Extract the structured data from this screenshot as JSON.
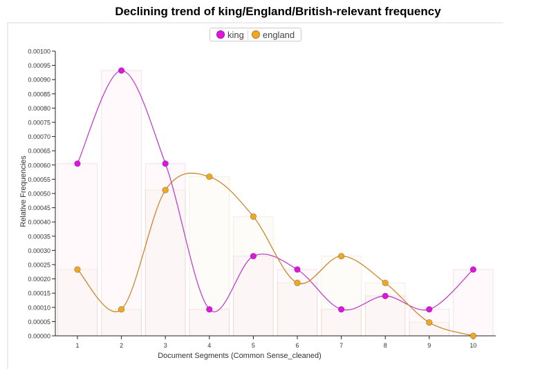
{
  "title": "Declining trend of king/England/British-relevant frequency",
  "chart_data": {
    "type": "line",
    "categories": [
      "1",
      "2",
      "3",
      "4",
      "5",
      "6",
      "7",
      "8",
      "9",
      "10"
    ],
    "x": [
      1,
      2,
      3,
      4,
      5,
      6,
      7,
      8,
      9,
      10
    ],
    "series": [
      {
        "name": "king",
        "color": "#e014e0",
        "line_color": "#c040c8",
        "values": [
          0.000605,
          0.000932,
          0.000605,
          9.3e-05,
          0.00028,
          0.000233,
          9.3e-05,
          0.00014,
          9.3e-05,
          0.000233
        ]
      },
      {
        "name": "england",
        "color": "#f0a820",
        "line_color": "#c8882a",
        "values": [
          0.000233,
          9.3e-05,
          0.000512,
          0.000559,
          0.000419,
          0.000186,
          0.00028,
          0.000186,
          4.7e-05,
          0.0
        ]
      }
    ],
    "bars": {
      "description": "faint translucent bars behind each series' points",
      "series_order": [
        "king",
        "england"
      ]
    },
    "xlabel": "Document Segments (Common Sense_cleaned)",
    "ylabel": "Relative Frequencies",
    "ylim": [
      0,
      0.001
    ],
    "yticks": [
      "0.00000",
      "0.00005",
      "0.00010",
      "0.00015",
      "0.00020",
      "0.00025",
      "0.00030",
      "0.00035",
      "0.00040",
      "0.00045",
      "0.00050",
      "0.00055",
      "0.00060",
      "0.00065",
      "0.00070",
      "0.00075",
      "0.00080",
      "0.00085",
      "0.00090",
      "0.00095",
      "0.00100"
    ],
    "legend_position": "top-center",
    "grid": false
  }
}
